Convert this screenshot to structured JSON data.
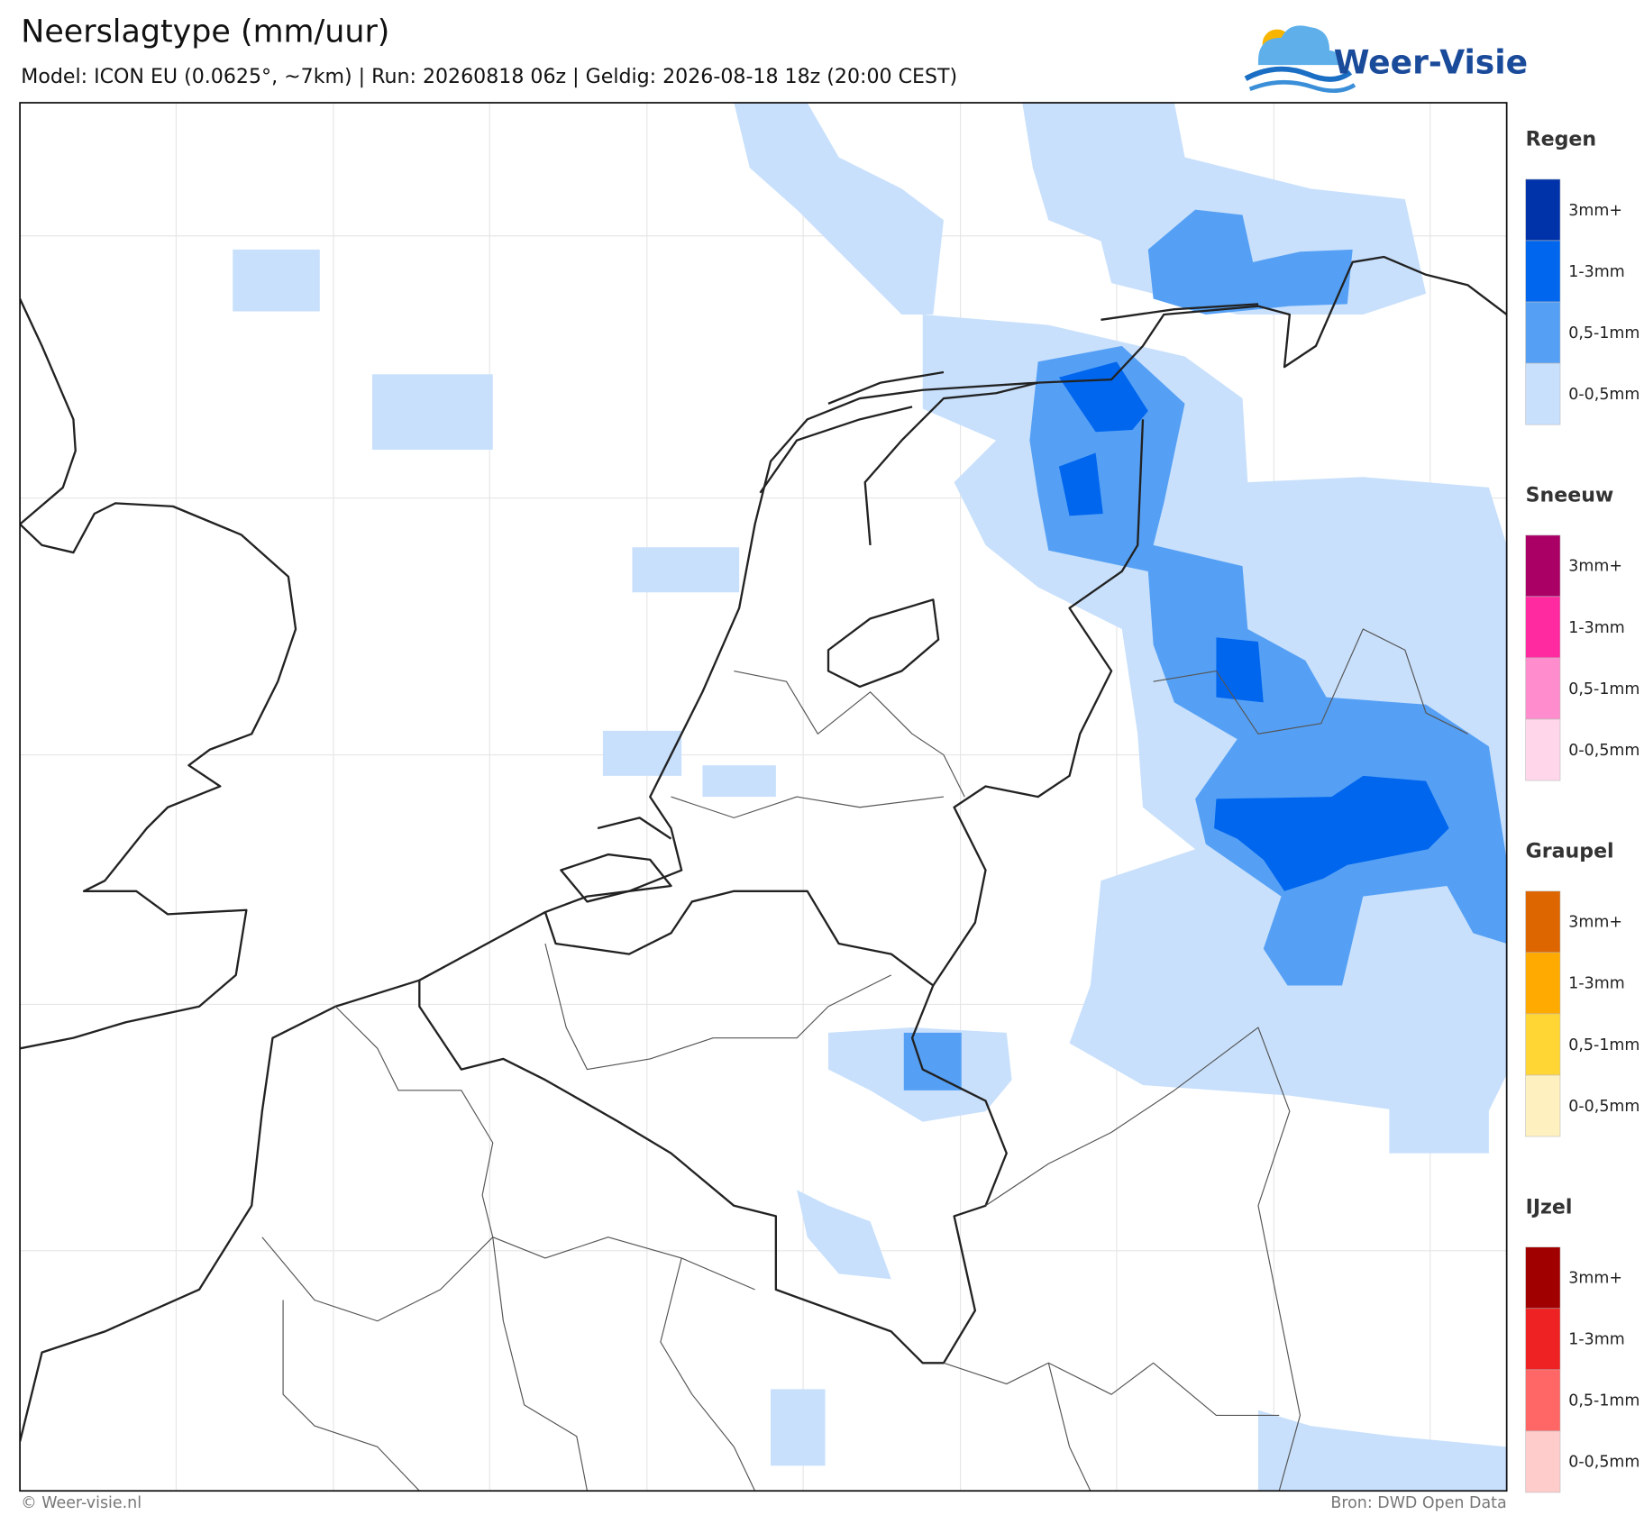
{
  "header": {
    "title": "Neerslagtype (mm/uur)",
    "subtitle": "Model: ICON EU (0.0625°, ~7km)  |  Run: 20260818 06z  |  Geldig: 2026-08-18 18z (20:00 CEST)",
    "logo": "Weer-Visie"
  },
  "legend": [
    {
      "title": "Regen",
      "items": [
        {
          "label": "3mm+",
          "color": "#0033aa"
        },
        {
          "label": "1-3mm",
          "color": "#0066ee"
        },
        {
          "label": "0,5-1mm",
          "color": "#55a0f5"
        },
        {
          "label": "0-0,5mm",
          "color": "#c8e0fc"
        }
      ]
    },
    {
      "title": "Sneeuw",
      "items": [
        {
          "label": "3mm+",
          "color": "#aa0066"
        },
        {
          "label": "1-3mm",
          "color": "#ff2aa0"
        },
        {
          "label": "0,5-1mm",
          "color": "#ff8ccc"
        },
        {
          "label": "0-0,5mm",
          "color": "#ffd6ea"
        }
      ]
    },
    {
      "title": "Graupel",
      "items": [
        {
          "label": "3mm+",
          "color": "#dd6600"
        },
        {
          "label": "1-3mm",
          "color": "#ffaa00"
        },
        {
          "label": "0,5-1mm",
          "color": "#ffd633"
        },
        {
          "label": "0-0,5mm",
          "color": "#fff0c0"
        }
      ]
    },
    {
      "title": "IJzel",
      "items": [
        {
          "label": "3mm+",
          "color": "#a00000"
        },
        {
          "label": "1-3mm",
          "color": "#ee2222"
        },
        {
          "label": "0,5-1mm",
          "color": "#ff6666"
        },
        {
          "label": "0-0,5mm",
          "color": "#ffcccc"
        }
      ]
    }
  ],
  "footer": {
    "credit": "© Weer-visie.nl",
    "source": "Bron: DWD Open Data"
  }
}
